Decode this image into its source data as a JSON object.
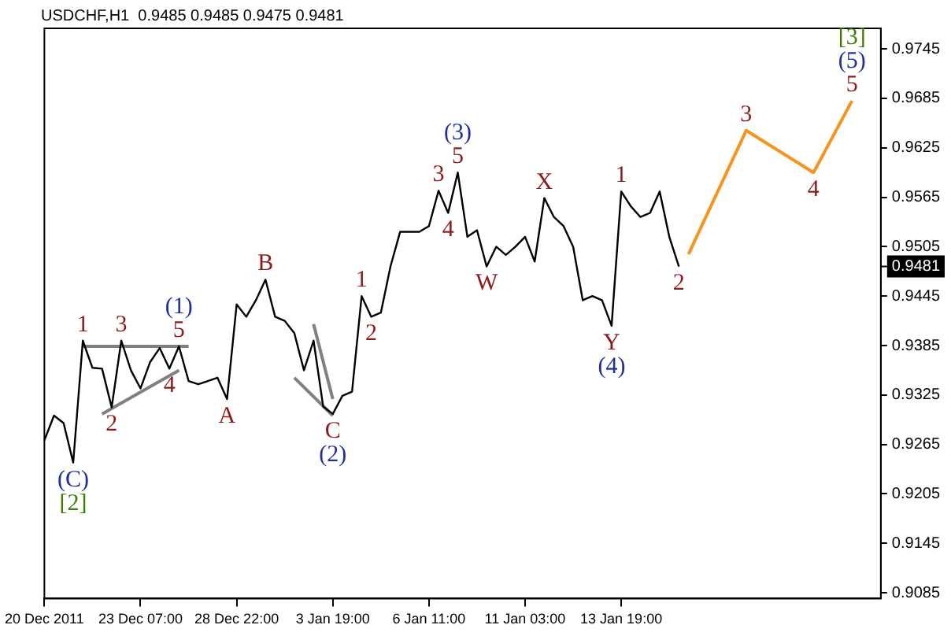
{
  "chart_data": {
    "type": "line",
    "title": "USDCHF,H1  0.9485 0.9485 0.9475 0.9481",
    "categories": [
      "20 Dec 2011",
      null,
      null,
      null,
      null,
      null,
      null,
      null,
      null,
      null,
      "23 Dec 07:00",
      null,
      null,
      null,
      null,
      null,
      null,
      null,
      null,
      null,
      "28 Dec 22:00",
      null,
      null,
      null,
      null,
      null,
      null,
      null,
      null,
      null,
      "3 Jan 19:00",
      null,
      null,
      null,
      null,
      null,
      null,
      null,
      null,
      null,
      "6 Jan 11:00",
      null,
      null,
      null,
      null,
      null,
      null,
      null,
      null,
      null,
      "11 Jan 03:00",
      null,
      null,
      null,
      null,
      null,
      null,
      null,
      null,
      null,
      "13 Jan 19:00",
      null,
      null,
      null,
      null,
      null,
      null,
      null,
      null,
      null,
      null,
      null,
      null,
      null,
      null,
      null,
      null,
      null,
      null,
      null,
      null,
      null,
      null,
      null,
      null,
      null,
      null,
      null
    ],
    "series": [
      {
        "color": "#000000",
        "values": [
          0.927,
          0.93,
          0.9291,
          0.9243,
          0.9391,
          0.9358,
          0.9357,
          0.931,
          0.9391,
          0.9355,
          0.9333,
          0.9365,
          0.9382,
          0.9357,
          0.9384,
          0.9342,
          0.9338,
          0.9342,
          0.9346,
          0.932,
          0.9435,
          0.942,
          0.944,
          0.9465,
          0.942,
          0.9415,
          0.94,
          0.9355,
          0.9391,
          0.9311,
          0.9302,
          0.9324,
          0.9329,
          0.9445,
          0.942,
          0.9425,
          0.9481,
          0.9523,
          0.9523,
          0.9523,
          0.953,
          0.9573,
          0.9546,
          0.9595,
          0.9517,
          0.9525,
          0.9481,
          0.9505,
          0.9495,
          0.9505,
          0.9517,
          0.9487,
          0.9564,
          0.9541,
          0.953,
          0.9505,
          0.944,
          0.9445,
          0.944,
          0.9409,
          0.9572,
          0.9554,
          0.9541,
          0.9546,
          0.9572,
          0.9517,
          0.9481,
          null,
          null,
          null,
          null,
          null,
          null,
          null,
          null,
          null,
          null,
          null,
          null,
          null,
          null,
          null,
          null,
          null,
          null,
          null,
          null,
          null
        ]
      },
      {
        "color": "#f7941d",
        "values": [
          null,
          null,
          null,
          null,
          null,
          null,
          null,
          null,
          null,
          null,
          null,
          null,
          null,
          null,
          null,
          null,
          null,
          null,
          null,
          null,
          null,
          null,
          null,
          null,
          null,
          null,
          null,
          null,
          null,
          null,
          null,
          null,
          null,
          null,
          null,
          null,
          null,
          null,
          null,
          null,
          null,
          null,
          null,
          null,
          null,
          null,
          null,
          null,
          null,
          null,
          null,
          null,
          null,
          null,
          null,
          null,
          null,
          null,
          null,
          null,
          null,
          null,
          null,
          null,
          null,
          null,
          null,
          0.9496,
          null,
          null,
          null,
          null,
          null,
          0.9646,
          null,
          null,
          null,
          null,
          null,
          null,
          0.9595,
          null,
          null,
          null,
          0.9682,
          null,
          null,
          null
        ]
      },
      {
        "color": "#808080",
        "values": [
          null,
          null,
          null,
          null,
          0.9384,
          null,
          null,
          null,
          null,
          null,
          null,
          null,
          null,
          null,
          null,
          0.9384,
          null,
          null,
          null,
          null,
          null,
          null,
          null,
          null,
          null,
          null,
          null,
          null,
          null,
          null,
          null,
          null,
          null,
          null,
          null,
          null,
          null,
          null,
          null,
          null,
          null,
          null,
          null,
          null,
          null,
          null,
          null,
          null,
          null,
          null,
          null,
          null,
          null,
          null,
          null,
          null,
          null,
          null,
          null,
          null,
          null,
          null,
          null,
          null,
          null,
          null,
          null,
          null,
          null,
          null,
          null,
          null,
          null,
          null,
          null,
          null,
          null,
          null,
          null,
          null,
          null,
          null,
          null,
          null,
          null,
          null,
          null,
          null
        ]
      },
      {
        "color": "#808080",
        "values": [
          null,
          null,
          null,
          null,
          null,
          null,
          0.9302,
          null,
          null,
          null,
          null,
          null,
          null,
          null,
          0.9355,
          null,
          null,
          null,
          null,
          null,
          null,
          null,
          null,
          null,
          null,
          null,
          null,
          null,
          null,
          null,
          null,
          null,
          null,
          null,
          null,
          null,
          null,
          null,
          null,
          null,
          null,
          null,
          null,
          null,
          null,
          null,
          null,
          null,
          null,
          null,
          null,
          null,
          null,
          null,
          null,
          null,
          null,
          null,
          null,
          null,
          null,
          null,
          null,
          null,
          null,
          null,
          null,
          null,
          null,
          null,
          null,
          null,
          null,
          null,
          null,
          null,
          null,
          null,
          null,
          null,
          null,
          null,
          null,
          null,
          null,
          null,
          null,
          null
        ]
      },
      {
        "color": "#808080",
        "values": [
          null,
          null,
          null,
          null,
          null,
          null,
          null,
          null,
          null,
          null,
          null,
          null,
          null,
          null,
          null,
          null,
          null,
          null,
          null,
          null,
          null,
          null,
          null,
          null,
          null,
          null,
          0.9346,
          null,
          null,
          null,
          0.93,
          null,
          null,
          null,
          null,
          null,
          null,
          null,
          null,
          null,
          null,
          null,
          null,
          null,
          null,
          null,
          null,
          null,
          null,
          null,
          null,
          null,
          null,
          null,
          null,
          null,
          null,
          null,
          null,
          null,
          null,
          null,
          null,
          null,
          null,
          null,
          null,
          null,
          null,
          null,
          null,
          null,
          null,
          null,
          null,
          null,
          null,
          null,
          null,
          null,
          null,
          null,
          null,
          null,
          null,
          null,
          null,
          null
        ]
      },
      {
        "color": "#808080",
        "values": [
          null,
          null,
          null,
          null,
          null,
          null,
          null,
          null,
          null,
          null,
          null,
          null,
          null,
          null,
          null,
          null,
          null,
          null,
          null,
          null,
          null,
          null,
          null,
          null,
          null,
          null,
          null,
          null,
          0.9411,
          null,
          0.932,
          null,
          null,
          null,
          null,
          null,
          null,
          null,
          null,
          null,
          null,
          null,
          null,
          null,
          null,
          null,
          null,
          null,
          null,
          null,
          null,
          null,
          null,
          null,
          null,
          null,
          null,
          null,
          null,
          null,
          null,
          null,
          null,
          null,
          null,
          null,
          null,
          null,
          null,
          null,
          null,
          null,
          null,
          null,
          null,
          null,
          null,
          null,
          null,
          null,
          null,
          null,
          null,
          null,
          null,
          null,
          null,
          null
        ]
      }
    ],
    "annotations": [
      {
        "text": "(C)",
        "y": 0.9243
      },
      {
        "text": "[2]",
        "y": 0.9243
      },
      {
        "text": "1",
        "y": 0.9391
      },
      {
        "text": "2",
        "y": 0.931
      },
      {
        "text": "3",
        "y": 0.9391
      },
      {
        "text": "4",
        "y": 0.9357
      },
      {
        "text": "(1)",
        "y": 0.9384
      },
      {
        "text": "5",
        "y": 0.9384
      },
      {
        "text": "A",
        "y": 0.932
      },
      {
        "text": "B",
        "y": 0.9465
      },
      {
        "text": "C",
        "y": 0.9302
      },
      {
        "text": "(2)",
        "y": 0.9302
      },
      {
        "text": "1",
        "y": 0.9445
      },
      {
        "text": "2",
        "y": 0.942
      },
      {
        "text": "3",
        "y": 0.9573
      },
      {
        "text": "4",
        "y": 0.9546
      },
      {
        "text": "(3)",
        "y": 0.9595
      },
      {
        "text": "5",
        "y": 0.9595
      },
      {
        "text": "W",
        "y": 0.9481
      },
      {
        "text": "X",
        "y": 0.9564
      },
      {
        "text": "Y",
        "y": 0.9409
      },
      {
        "text": "(4)",
        "y": 0.9409
      },
      {
        "text": "1",
        "y": 0.9572
      },
      {
        "text": "2",
        "y": 0.9481
      },
      {
        "text": "3",
        "y": 0.9646
      },
      {
        "text": "4",
        "y": 0.9595
      },
      {
        "text": "[3]",
        "y": 0.9682
      },
      {
        "text": "(5)",
        "y": 0.9682
      },
      {
        "text": "5",
        "y": 0.9682
      }
    ],
    "ylim": [
      0.9078,
      0.977
    ],
    "yticks": [
      0.9085,
      0.9145,
      0.9205,
      0.9265,
      0.9325,
      0.9385,
      0.9445,
      0.9505,
      0.9565,
      0.9625,
      0.9685,
      0.9745
    ],
    "ref_lines": [
      {
        "axis": "y",
        "value": 0.9481,
        "label": "0.9481"
      }
    ],
    "grid": false,
    "legend": false
  }
}
